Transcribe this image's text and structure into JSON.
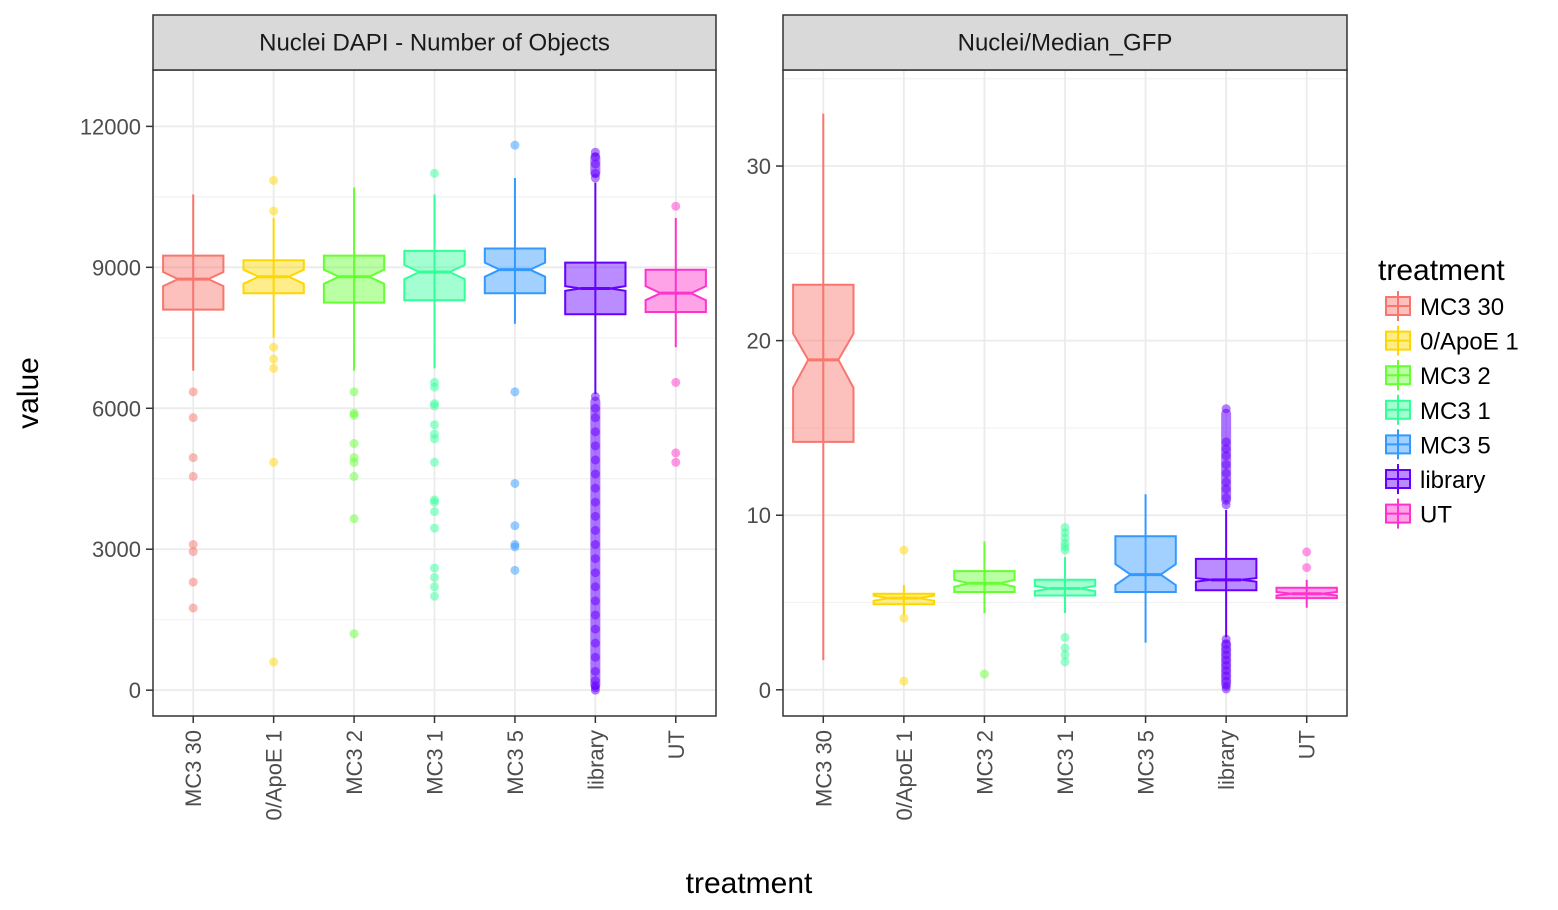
{
  "chart_data": {
    "type": "box",
    "xlabel": "treatment",
    "ylabel": "value",
    "legend": {
      "title": "treatment",
      "position": "right",
      "entries": [
        {
          "name": "MC3 30",
          "color": "#F8766D"
        },
        {
          "name": "0/ApoE 1",
          "color": "#FFD700"
        },
        {
          "name": "MC3 2",
          "color": "#66FF33"
        },
        {
          "name": "MC3 1",
          "color": "#33FF99"
        },
        {
          "name": "MC3 5",
          "color": "#3399FF"
        },
        {
          "name": "library",
          "color": "#6600FF"
        },
        {
          "name": "UT",
          "color": "#FF33CC"
        }
      ]
    },
    "categories": [
      "MC3 30",
      "0/ApoE 1",
      "MC3 2",
      "MC3 1",
      "MC3 5",
      "library",
      "UT"
    ],
    "panels": [
      {
        "title": "Nuclei DAPI - Number of Objects",
        "ylim": [
          -550,
          13200
        ],
        "yticks": [
          0,
          3000,
          6000,
          9000,
          12000
        ],
        "grid": true,
        "boxes": [
          {
            "category": "MC3 30",
            "whisker_low": 6800,
            "q1": 8100,
            "median": 8750,
            "q3": 9250,
            "whisker_high": 10550,
            "notch_low": 8600,
            "notch_high": 8900,
            "outliers": [
              6350,
              5800,
              4950,
              4550,
              3100,
              2950,
              2300,
              1750
            ]
          },
          {
            "category": "0/ApoE 1",
            "whisker_low": 7500,
            "q1": 8450,
            "median": 8800,
            "q3": 9150,
            "whisker_high": 10050,
            "notch_low": 8650,
            "notch_high": 8950,
            "outliers": [
              10850,
              10200,
              7300,
              7050,
              6850,
              4850,
              600
            ]
          },
          {
            "category": "MC3 2",
            "whisker_low": 6800,
            "q1": 8250,
            "median": 8800,
            "q3": 9250,
            "whisker_high": 10700,
            "notch_low": 8650,
            "notch_high": 8950,
            "outliers": [
              6350,
              5900,
              5850,
              5250,
              4950,
              4850,
              4550,
              3650,
              1200
            ]
          },
          {
            "category": "MC3 1",
            "whisker_low": 6850,
            "q1": 8300,
            "median": 8900,
            "q3": 9350,
            "whisker_high": 10550,
            "notch_low": 8750,
            "notch_high": 9050,
            "outliers": [
              11000,
              6550,
              6450,
              6100,
              6050,
              5650,
              5450,
              5350,
              4850,
              4050,
              4000,
              3800,
              3450,
              2600,
              2400,
              2200,
              2000
            ]
          },
          {
            "category": "MC3 5",
            "whisker_low": 7800,
            "q1": 8450,
            "median": 8950,
            "q3": 9400,
            "whisker_high": 10900,
            "notch_low": 8800,
            "notch_high": 9100,
            "outliers": [
              11600,
              6350,
              4400,
              3500,
              3100,
              3050,
              2550
            ]
          },
          {
            "category": "library",
            "whisker_low": 6300,
            "q1": 8000,
            "median": 8550,
            "q3": 9100,
            "whisker_high": 10800,
            "notch_low": 8500,
            "notch_high": 8600,
            "outliers": [
              11450,
              11350,
              11200,
              11000,
              10900,
              6250,
              6000,
              5800,
              5500,
              5200,
              4900,
              4600,
              4300,
              4000,
              3700,
              3400,
              3100,
              2800,
              2500,
              2200,
              1900,
              1600,
              1300,
              1000,
              700,
              400,
              200,
              100,
              50,
              0
            ]
          },
          {
            "category": "UT",
            "whisker_low": 7300,
            "q1": 8050,
            "median": 8450,
            "q3": 8950,
            "whisker_high": 10050,
            "notch_low": 8300,
            "notch_high": 8600,
            "outliers": [
              10300,
              6550,
              5050,
              4850
            ]
          }
        ]
      },
      {
        "title": "Nuclei/Median_GFP",
        "ylim": [
          -1.5,
          35.5
        ],
        "yticks": [
          0,
          10,
          20,
          30
        ],
        "grid": true,
        "boxes": [
          {
            "category": "MC3 30",
            "whisker_low": 1.7,
            "q1": 14.2,
            "median": 18.9,
            "q3": 23.2,
            "whisker_high": 33.0,
            "notch_low": 17.3,
            "notch_high": 20.4,
            "outliers": []
          },
          {
            "category": "0/ApoE 1",
            "whisker_low": 4.3,
            "q1": 4.9,
            "median": 5.25,
            "q3": 5.5,
            "whisker_high": 6.0,
            "notch_low": 5.1,
            "notch_high": 5.4,
            "outliers": [
              8.0,
              4.1,
              0.5
            ]
          },
          {
            "category": "MC3 2",
            "whisker_low": 4.4,
            "q1": 5.6,
            "median": 6.1,
            "q3": 6.8,
            "whisker_high": 8.5,
            "notch_low": 5.9,
            "notch_high": 6.3,
            "outliers": [
              0.9
            ]
          },
          {
            "category": "MC3 1",
            "whisker_low": 4.4,
            "q1": 5.4,
            "median": 5.8,
            "q3": 6.3,
            "whisker_high": 7.6,
            "notch_low": 5.65,
            "notch_high": 5.95,
            "outliers": [
              9.3,
              9.0,
              8.7,
              8.4,
              8.2,
              8.0,
              3.0,
              2.4,
              2.0,
              1.6
            ]
          },
          {
            "category": "MC3 5",
            "whisker_low": 2.7,
            "q1": 5.6,
            "median": 6.6,
            "q3": 8.8,
            "whisker_high": 11.2,
            "notch_low": 6.0,
            "notch_high": 7.2,
            "outliers": []
          },
          {
            "category": "library",
            "whisker_low": 3.0,
            "q1": 5.7,
            "median": 6.3,
            "q3": 7.5,
            "whisker_high": 10.3,
            "notch_low": 6.2,
            "notch_high": 6.4,
            "outliers": [
              16.1,
              14.2,
              13.8,
              13.4,
              12.9,
              12.4,
              11.9,
              11.5,
              11.0,
              10.6,
              2.9,
              2.6,
              2.3,
              2.0,
              1.7,
              1.4,
              1.1,
              0.8,
              0.5,
              0.2,
              0.05
            ]
          },
          {
            "category": "UT",
            "whisker_low": 4.7,
            "q1": 5.25,
            "median": 5.5,
            "q3": 5.85,
            "whisker_high": 6.3,
            "notch_low": 5.4,
            "notch_high": 5.6,
            "outliers": [
              7.9,
              7.0
            ]
          }
        ]
      }
    ]
  }
}
